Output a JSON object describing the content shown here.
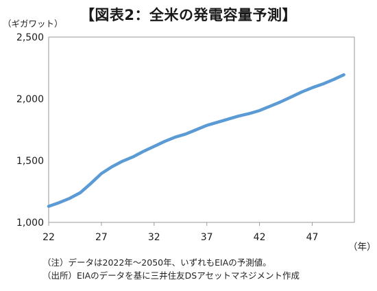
{
  "title": "【図表2：全米の発電容量予測】",
  "y_unit": "（ギガワット）",
  "x_unit": "（年）",
  "notes": [
    "（注）データは2022年～2050年、いずれもEIAの予測値。",
    "（出所）EIAのデータを基に三井住友DSアセットマネジメント作成"
  ],
  "colors": {
    "line": "#5b9bd5",
    "frame": "#9a9a9a",
    "text": "#1a1a1a"
  },
  "chart_data": {
    "type": "line",
    "title": "【図表2：全米の発電容量予測】",
    "xlabel": "（年）",
    "ylabel": "（ギガワット）",
    "x": [
      22,
      23,
      24,
      25,
      26,
      27,
      28,
      29,
      30,
      31,
      32,
      33,
      34,
      35,
      36,
      37,
      38,
      39,
      40,
      41,
      42,
      43,
      44,
      45,
      46,
      47,
      48,
      49,
      50
    ],
    "series": [
      {
        "values": [
          1130,
          1160,
          1195,
          1240,
          1315,
          1395,
          1450,
          1495,
          1530,
          1575,
          1615,
          1655,
          1690,
          1715,
          1750,
          1785,
          1810,
          1835,
          1860,
          1880,
          1905,
          1940,
          1975,
          2015,
          2055,
          2090,
          2120,
          2155,
          2195
        ]
      }
    ],
    "xlim": [
      22,
      51
    ],
    "ylim": [
      1000,
      2500
    ],
    "x_ticks": [
      22,
      27,
      32,
      37,
      42,
      47
    ],
    "x_tick_labels": [
      "22",
      "27",
      "32",
      "37",
      "42",
      "47"
    ],
    "y_ticks": [
      1000,
      1500,
      2000,
      2500
    ],
    "y_tick_labels": [
      "1,000",
      "1,500",
      "2,000",
      "2,500"
    ],
    "grid": false,
    "legend": "none"
  }
}
